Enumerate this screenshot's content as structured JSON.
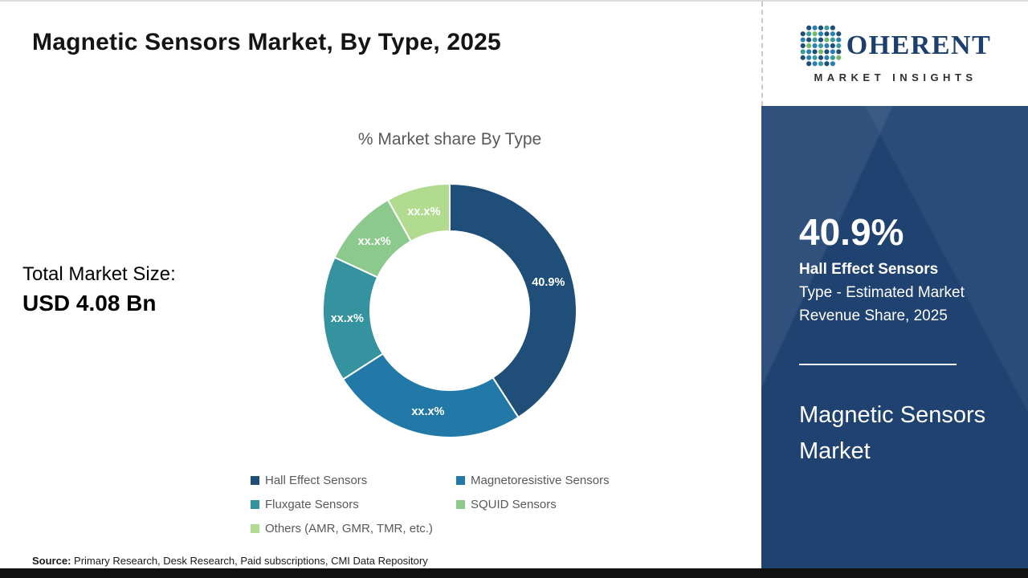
{
  "title": "Magnetic Sensors Market, By Type, 2025",
  "total_market": {
    "label": "Total Market Size:",
    "value": "USD 4.08 Bn"
  },
  "source": {
    "label": "Source:",
    "text": " Primary Research, Desk Research, Paid subscriptions, CMI Data Repository"
  },
  "brand": {
    "name_rest": "OHERENT",
    "subtitle": "MARKET INSIGHTS"
  },
  "side_panel": {
    "stat_value": "40.9%",
    "desc_bold": "Hall Effect Sensors",
    "desc_rest": " Type - Estimated Market Revenue Share, 2025",
    "panel_title": "Magnetic Sensors Market"
  },
  "chart_data": {
    "type": "pie",
    "subtype": "donut",
    "title": "% Market share By Type",
    "categories": [
      "Hall Effect Sensors",
      "Magnetoresistive Sensors",
      "Fluxgate Sensors",
      "SQUID Sensors",
      "Others (AMR, GMR, TMR, etc.)"
    ],
    "values": [
      40.9,
      25.0,
      16.0,
      10.0,
      8.1
    ],
    "displayed_labels": [
      "40.9%",
      "xx.x%",
      "xx.x%",
      "xx.x%",
      "xx.x%"
    ],
    "colors": [
      "#1f4e79",
      "#2279a7",
      "#35939f",
      "#8cc98c",
      "#b1dc8f"
    ],
    "legend_position": "bottom",
    "start_angle_deg": 0,
    "direction": "clockwise"
  }
}
